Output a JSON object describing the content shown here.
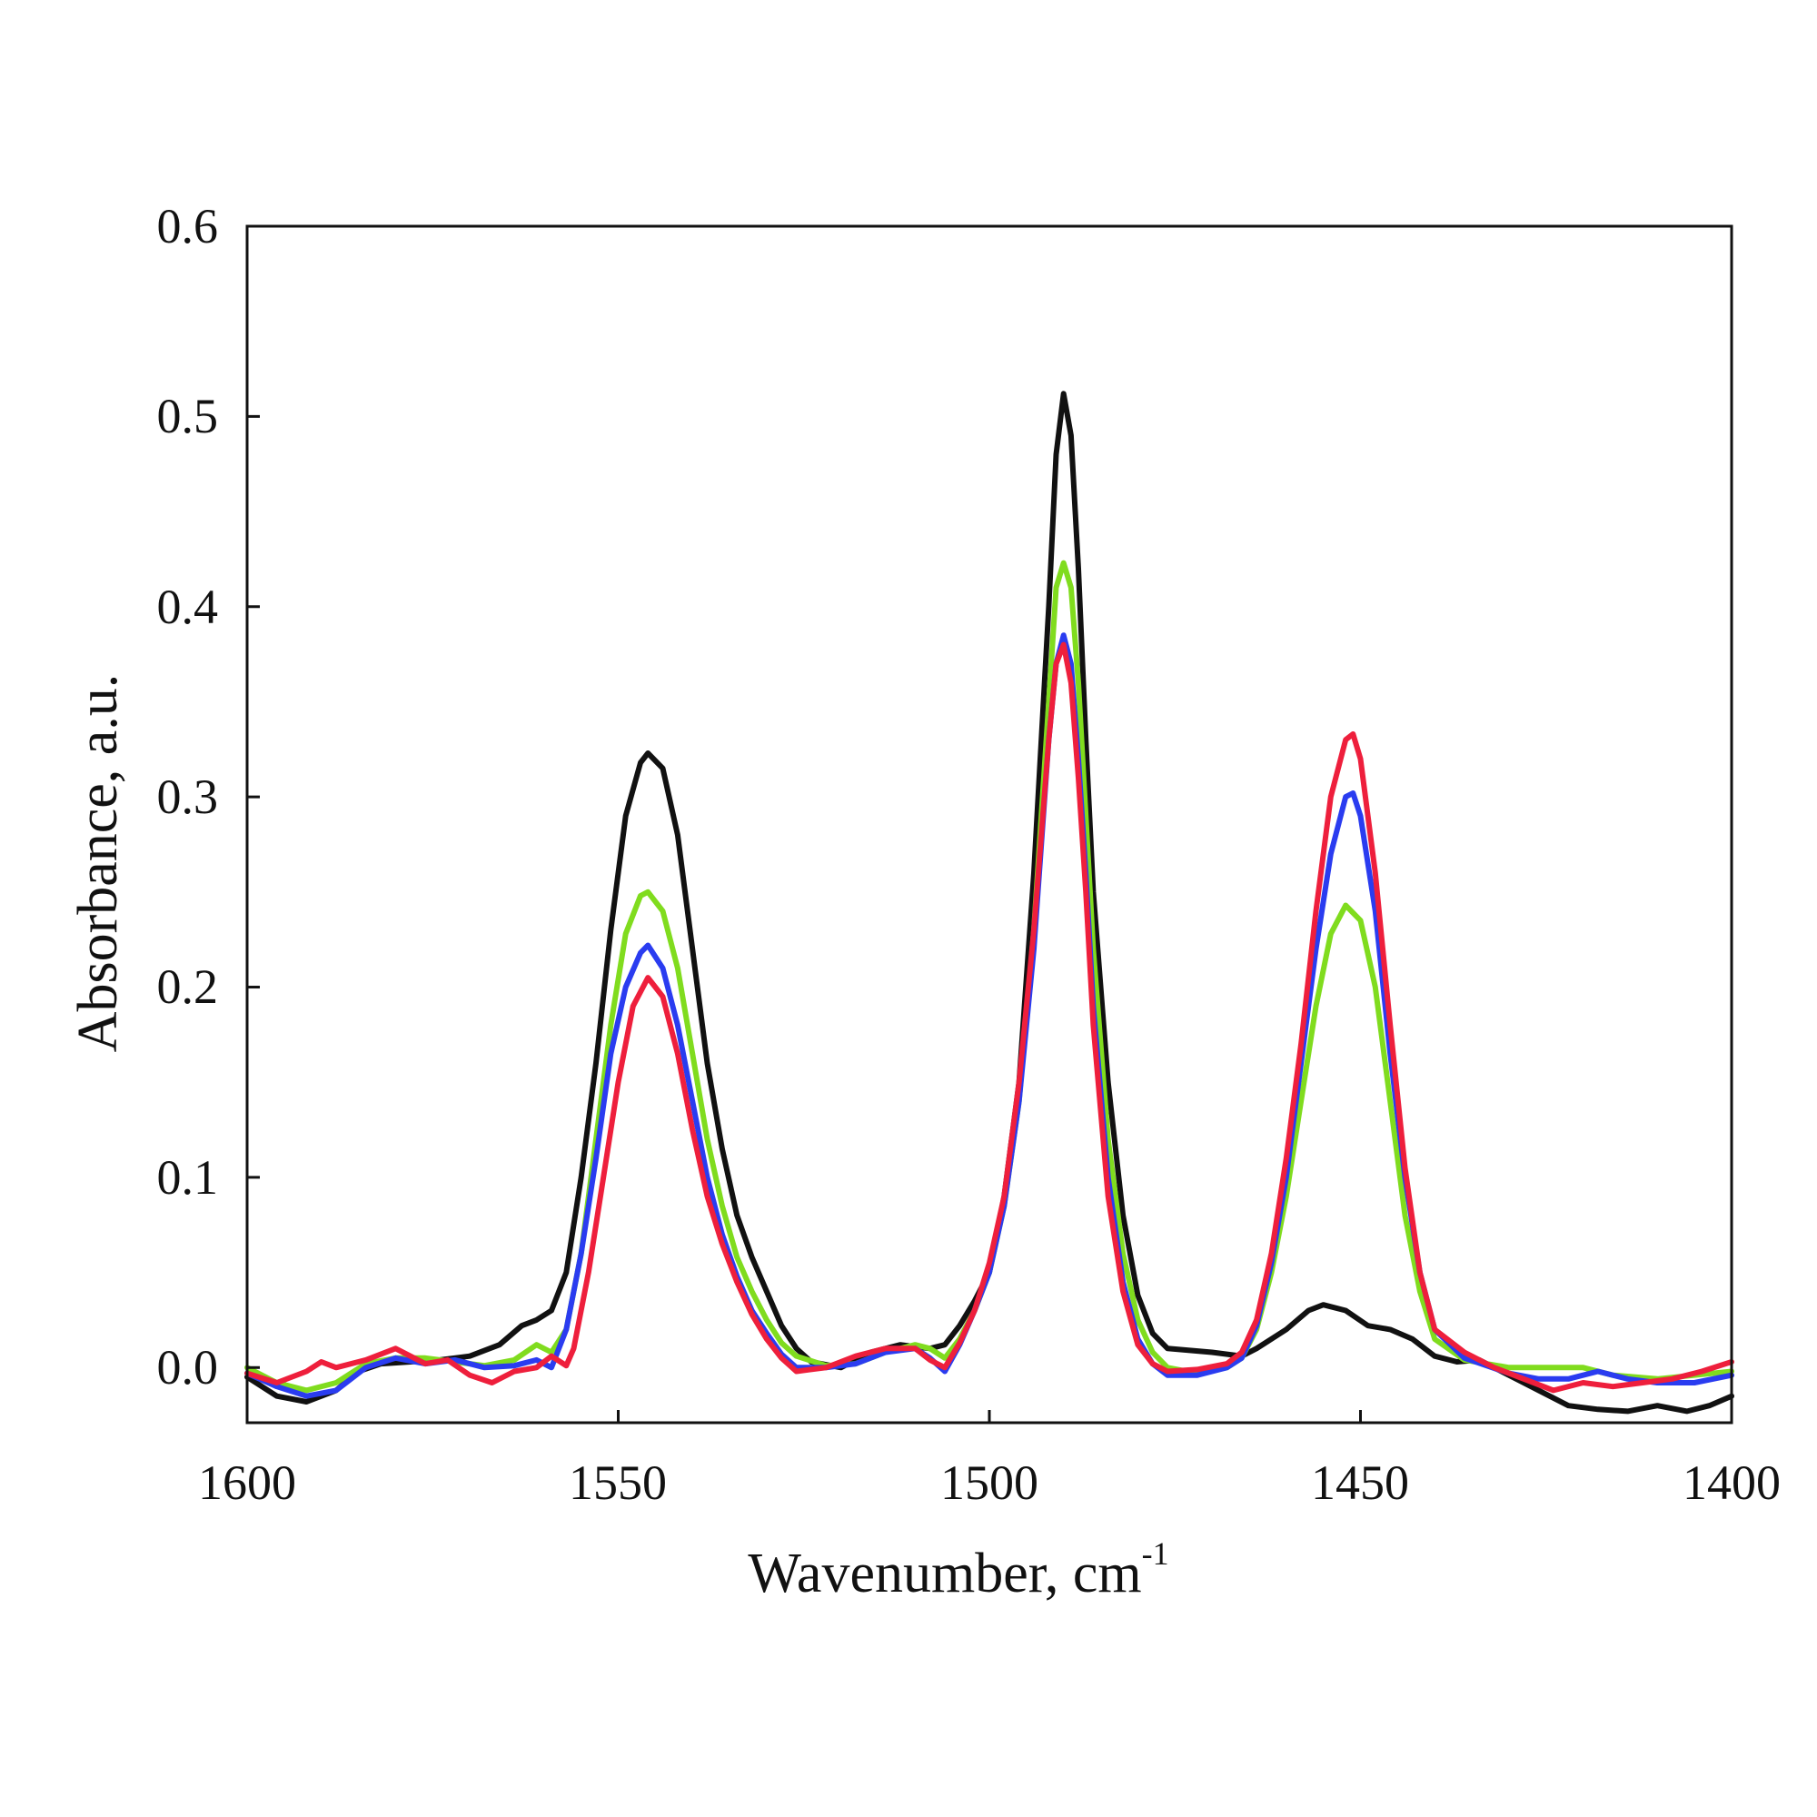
{
  "chart_data": {
    "type": "line",
    "title": "",
    "xlabel": "Wavenumber, cm",
    "xlabel_superscript": "-1",
    "ylabel": "Absorbance, a.u.",
    "xlim": [
      1600,
      1400
    ],
    "x_reversed": true,
    "ylim": [
      -0.029,
      0.6
    ],
    "x_ticks": [
      "1600",
      "1550",
      "1500",
      "1450",
      "1400"
    ],
    "y_ticks": [
      "0.0",
      "0.1",
      "0.2",
      "0.3",
      "0.4",
      "0.5",
      "0.6"
    ],
    "grid": false,
    "legend": "none",
    "series": [
      {
        "color": "#111111",
        "x": [
          1600,
          1596,
          1592,
          1588,
          1585,
          1582,
          1578,
          1574,
          1570,
          1566,
          1563,
          1561,
          1559,
          1557,
          1555,
          1553,
          1551,
          1549,
          1547,
          1546,
          1544,
          1542,
          1540,
          1538,
          1536,
          1534,
          1532,
          1530,
          1528,
          1526,
          1524,
          1520,
          1516,
          1512,
          1508,
          1506,
          1504,
          1502,
          1500,
          1498,
          1496,
          1494,
          1492,
          1491,
          1490,
          1489,
          1488,
          1487,
          1486,
          1484,
          1482,
          1480,
          1478,
          1476,
          1470,
          1466,
          1464,
          1460,
          1457,
          1455,
          1452,
          1449,
          1446,
          1443,
          1440,
          1437,
          1434,
          1430,
          1426,
          1422,
          1418,
          1414,
          1410,
          1406,
          1403,
          1400
        ],
        "y": [
          -0.005,
          -0.015,
          -0.018,
          -0.012,
          -0.002,
          0.002,
          0.003,
          0.004,
          0.006,
          0.012,
          0.022,
          0.025,
          0.03,
          0.05,
          0.1,
          0.16,
          0.23,
          0.29,
          0.318,
          0.323,
          0.315,
          0.28,
          0.22,
          0.16,
          0.115,
          0.08,
          0.058,
          0.04,
          0.022,
          0.01,
          0.003,
          0.0,
          0.008,
          0.012,
          0.01,
          0.012,
          0.022,
          0.035,
          0.05,
          0.09,
          0.15,
          0.26,
          0.4,
          0.48,
          0.512,
          0.49,
          0.42,
          0.33,
          0.25,
          0.15,
          0.08,
          0.038,
          0.018,
          0.01,
          0.008,
          0.006,
          0.01,
          0.02,
          0.03,
          0.033,
          0.03,
          0.022,
          0.02,
          0.015,
          0.006,
          0.003,
          0.004,
          -0.004,
          -0.012,
          -0.02,
          -0.022,
          -0.023,
          -0.02,
          -0.023,
          -0.02,
          -0.015
        ]
      },
      {
        "color": "#80dc1e",
        "x": [
          1600,
          1596,
          1592,
          1588,
          1584,
          1580,
          1576,
          1572,
          1568,
          1564,
          1561,
          1559,
          1557,
          1555,
          1553,
          1551,
          1549,
          1547,
          1546,
          1544,
          1542,
          1540,
          1538,
          1536,
          1534,
          1532,
          1530,
          1528,
          1526,
          1522,
          1518,
          1514,
          1510,
          1508,
          1506,
          1504,
          1502,
          1500,
          1498,
          1496,
          1494,
          1492,
          1491,
          1490,
          1489,
          1488,
          1487,
          1486,
          1484,
          1482,
          1480,
          1478,
          1476,
          1472,
          1468,
          1466,
          1464,
          1462,
          1460,
          1458,
          1456,
          1454,
          1452,
          1450,
          1448,
          1446,
          1444,
          1442,
          1440,
          1436,
          1430,
          1424,
          1420,
          1416,
          1410,
          1405,
          1400
        ],
        "y": [
          0.0,
          -0.008,
          -0.012,
          -0.008,
          0.002,
          0.005,
          0.005,
          0.003,
          0.001,
          0.004,
          0.012,
          0.008,
          0.02,
          0.06,
          0.12,
          0.18,
          0.228,
          0.248,
          0.25,
          0.24,
          0.21,
          0.165,
          0.12,
          0.085,
          0.058,
          0.04,
          0.025,
          0.013,
          0.006,
          0.001,
          0.002,
          0.008,
          0.012,
          0.01,
          0.005,
          0.015,
          0.03,
          0.05,
          0.085,
          0.14,
          0.23,
          0.35,
          0.41,
          0.423,
          0.41,
          0.36,
          0.29,
          0.22,
          0.12,
          0.06,
          0.025,
          0.008,
          0.0,
          -0.003,
          0.0,
          0.005,
          0.02,
          0.05,
          0.09,
          0.14,
          0.19,
          0.228,
          0.243,
          0.235,
          0.2,
          0.14,
          0.08,
          0.04,
          0.015,
          0.004,
          0.0,
          0.0,
          0.0,
          -0.004,
          -0.006,
          -0.004,
          -0.002
        ]
      },
      {
        "color": "#2a3cf0",
        "x": [
          1600,
          1596,
          1592,
          1588,
          1584,
          1580,
          1576,
          1572,
          1568,
          1564,
          1561,
          1559,
          1557,
          1555,
          1553,
          1551,
          1549,
          1547,
          1546,
          1544,
          1542,
          1540,
          1538,
          1536,
          1534,
          1532,
          1530,
          1528,
          1526,
          1522,
          1518,
          1514,
          1510,
          1508,
          1506,
          1504,
          1502,
          1500,
          1498,
          1496,
          1494,
          1492,
          1491,
          1490,
          1489,
          1488,
          1487,
          1486,
          1484,
          1482,
          1480,
          1478,
          1476,
          1472,
          1468,
          1466,
          1464,
          1462,
          1460,
          1458,
          1456,
          1454,
          1452,
          1451,
          1450,
          1448,
          1446,
          1444,
          1442,
          1440,
          1436,
          1430,
          1426,
          1422,
          1418,
          1414,
          1410,
          1405,
          1400
        ],
        "y": [
          -0.003,
          -0.01,
          -0.015,
          -0.012,
          0.0,
          0.005,
          0.002,
          0.004,
          0.0,
          0.001,
          0.004,
          0.0,
          0.02,
          0.06,
          0.11,
          0.165,
          0.2,
          0.218,
          0.222,
          0.21,
          0.18,
          0.14,
          0.1,
          0.07,
          0.048,
          0.03,
          0.018,
          0.007,
          0.0,
          0.0,
          0.002,
          0.008,
          0.01,
          0.005,
          -0.002,
          0.012,
          0.03,
          0.05,
          0.085,
          0.14,
          0.22,
          0.33,
          0.37,
          0.385,
          0.37,
          0.32,
          0.26,
          0.19,
          0.1,
          0.045,
          0.015,
          0.002,
          -0.004,
          -0.004,
          0.0,
          0.005,
          0.022,
          0.055,
          0.1,
          0.16,
          0.22,
          0.27,
          0.3,
          0.302,
          0.29,
          0.24,
          0.165,
          0.1,
          0.05,
          0.02,
          0.005,
          -0.003,
          -0.006,
          -0.006,
          -0.002,
          -0.006,
          -0.008,
          -0.008,
          -0.004
        ]
      },
      {
        "color": "#ee1f3c",
        "x": [
          1600,
          1596,
          1592,
          1590,
          1588,
          1584,
          1580,
          1576,
          1573,
          1570,
          1567,
          1564,
          1561,
          1559,
          1557,
          1556,
          1554,
          1552,
          1550,
          1548,
          1546,
          1544,
          1542,
          1540,
          1538,
          1536,
          1534,
          1532,
          1530,
          1528,
          1526,
          1522,
          1518,
          1514,
          1510,
          1508,
          1506,
          1504,
          1502,
          1500,
          1498,
          1496,
          1494,
          1492,
          1491,
          1490,
          1489,
          1488,
          1487,
          1486,
          1484,
          1482,
          1480,
          1478,
          1476,
          1472,
          1468,
          1466,
          1464,
          1462,
          1460,
          1458,
          1456,
          1454,
          1452,
          1451,
          1450,
          1448,
          1446,
          1444,
          1442,
          1440,
          1436,
          1432,
          1428,
          1424,
          1420,
          1416,
          1412,
          1408,
          1404,
          1400
        ],
        "y": [
          -0.003,
          -0.008,
          -0.002,
          0.003,
          0.0,
          0.004,
          0.01,
          0.002,
          0.004,
          -0.004,
          -0.008,
          -0.002,
          0.0,
          0.006,
          0.001,
          0.01,
          0.05,
          0.1,
          0.15,
          0.19,
          0.205,
          0.195,
          0.165,
          0.125,
          0.09,
          0.065,
          0.045,
          0.028,
          0.015,
          0.005,
          -0.002,
          0.0,
          0.006,
          0.01,
          0.01,
          0.004,
          0.0,
          0.013,
          0.03,
          0.055,
          0.09,
          0.15,
          0.23,
          0.33,
          0.37,
          0.38,
          0.36,
          0.31,
          0.25,
          0.18,
          0.09,
          0.04,
          0.012,
          0.002,
          -0.002,
          -0.001,
          0.002,
          0.008,
          0.025,
          0.06,
          0.11,
          0.17,
          0.24,
          0.3,
          0.33,
          0.333,
          0.32,
          0.26,
          0.18,
          0.105,
          0.05,
          0.02,
          0.008,
          0.0,
          -0.006,
          -0.012,
          -0.008,
          -0.01,
          -0.008,
          -0.006,
          -0.002,
          0.003
        ]
      }
    ]
  }
}
